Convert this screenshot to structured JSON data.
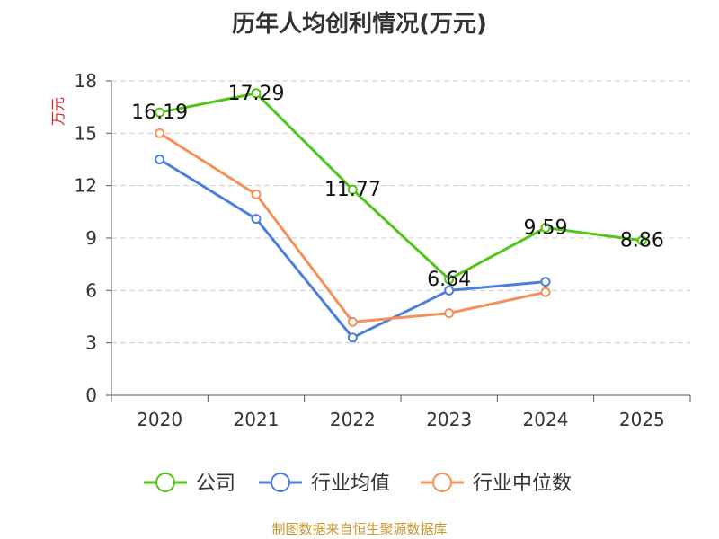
{
  "source_note": "制图数据来自恒生聚源数据库",
  "chart_data": {
    "type": "line",
    "title": "历年人均创利情况(万元)",
    "ylabel": "万元",
    "xlabel": "",
    "categories": [
      "2020",
      "2021",
      "2022",
      "2023",
      "2024",
      "2025"
    ],
    "ylim": [
      0,
      18
    ],
    "yticks": [
      0,
      3,
      6,
      9,
      12,
      15,
      18
    ],
    "grid": true,
    "legend_position": "bottom",
    "series": [
      {
        "name": "公司",
        "color": "#52c41a",
        "values": [
          16.19,
          17.29,
          11.77,
          6.64,
          9.59,
          8.86
        ],
        "labels": [
          "16.19",
          "17.29",
          "11.77",
          "6.64",
          "9.59",
          "8.86"
        ]
      },
      {
        "name": "行业均值",
        "color": "#4a7fdc",
        "values": [
          13.5,
          10.1,
          3.3,
          6.0,
          6.5,
          null
        ]
      },
      {
        "name": "行业中位数",
        "color": "#f4905a",
        "values": [
          15.0,
          11.5,
          4.2,
          4.7,
          5.9,
          null
        ]
      }
    ]
  }
}
